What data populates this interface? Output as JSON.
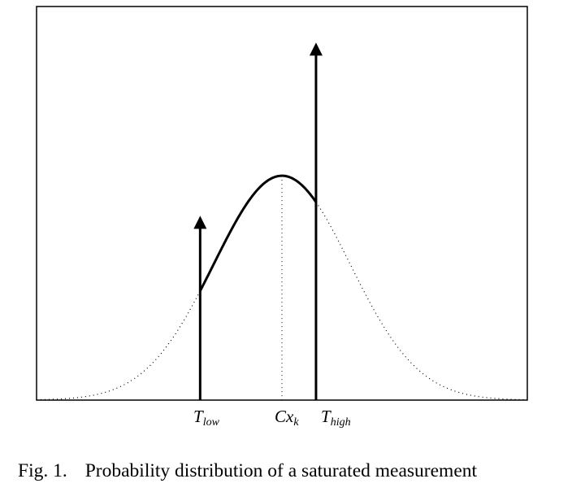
{
  "figure": {
    "caption_label": "Fig. 1.",
    "caption_text": "Probability distribution of a saturated measurement",
    "labels": {
      "t_low_main": "T",
      "t_low_sub": "low",
      "cxk_main": "Cx",
      "cxk_sub": "k",
      "t_high_main": "T",
      "t_high_sub": "high"
    }
  },
  "chart_data": {
    "type": "line",
    "mean": 0,
    "sigma": 1,
    "t_low": -1.2,
    "t_high": 0.5,
    "xlim": [
      -3.6,
      3.6
    ],
    "ylim": [
      0,
      1.0
    ],
    "peak_density_relative": 0.57,
    "impulse_low_height": 0.46,
    "impulse_high_height": 0.9,
    "grid": false
  }
}
